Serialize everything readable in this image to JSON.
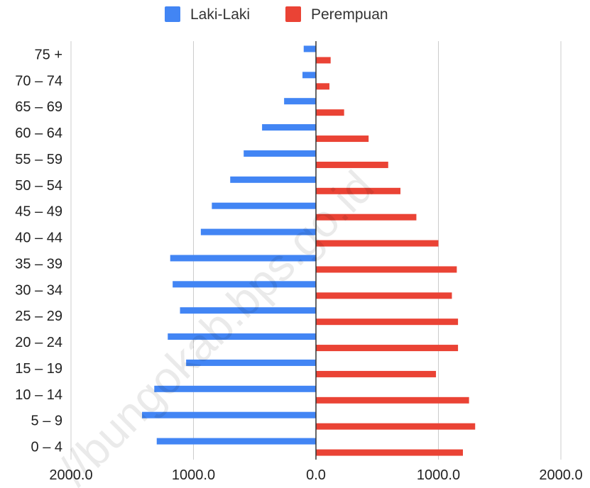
{
  "colors": {
    "male": "#4285F4",
    "female": "#EA4335",
    "grid": "#cccccc",
    "axis": "#333333"
  },
  "legend": [
    {
      "name": "Laki-Laki",
      "color": "#4285F4"
    },
    {
      "name": "Perempuan",
      "color": "#EA4335"
    }
  ],
  "watermark": "//bungokab.bps.go.id",
  "chart_data": {
    "type": "bar",
    "orientation": "horizontal",
    "categories": [
      "0 – 4",
      "5 – 9",
      "10 – 14",
      "15 – 19",
      "20 – 24",
      "25 – 29",
      "30 – 34",
      "35 – 39",
      "40 – 44",
      "45 – 49",
      "50 – 54",
      "55 – 59",
      "60 – 64",
      "65 – 69",
      "70 – 74",
      "75 +"
    ],
    "series": [
      {
        "name": "Laki-Laki",
        "values": [
          -1300,
          -1420,
          -1320,
          -1060,
          -1210,
          -1110,
          -1170,
          -1190,
          -940,
          -850,
          -700,
          -590,
          -440,
          -260,
          -110,
          -100
        ]
      },
      {
        "name": "Perempuan",
        "values": [
          1200,
          1300,
          1250,
          980,
          1160,
          1160,
          1110,
          1150,
          1000,
          820,
          690,
          590,
          430,
          230,
          110,
          120
        ]
      }
    ],
    "xlim": [
      -2000,
      2000
    ],
    "xticks": [
      {
        "value": -2000,
        "label": "2000.0"
      },
      {
        "value": -1000,
        "label": "1000.0"
      },
      {
        "value": 0,
        "label": "0.0"
      },
      {
        "value": 1000,
        "label": "1000.0"
      },
      {
        "value": 2000,
        "label": "2000.0"
      }
    ],
    "legend_position": "top",
    "grid": true
  }
}
